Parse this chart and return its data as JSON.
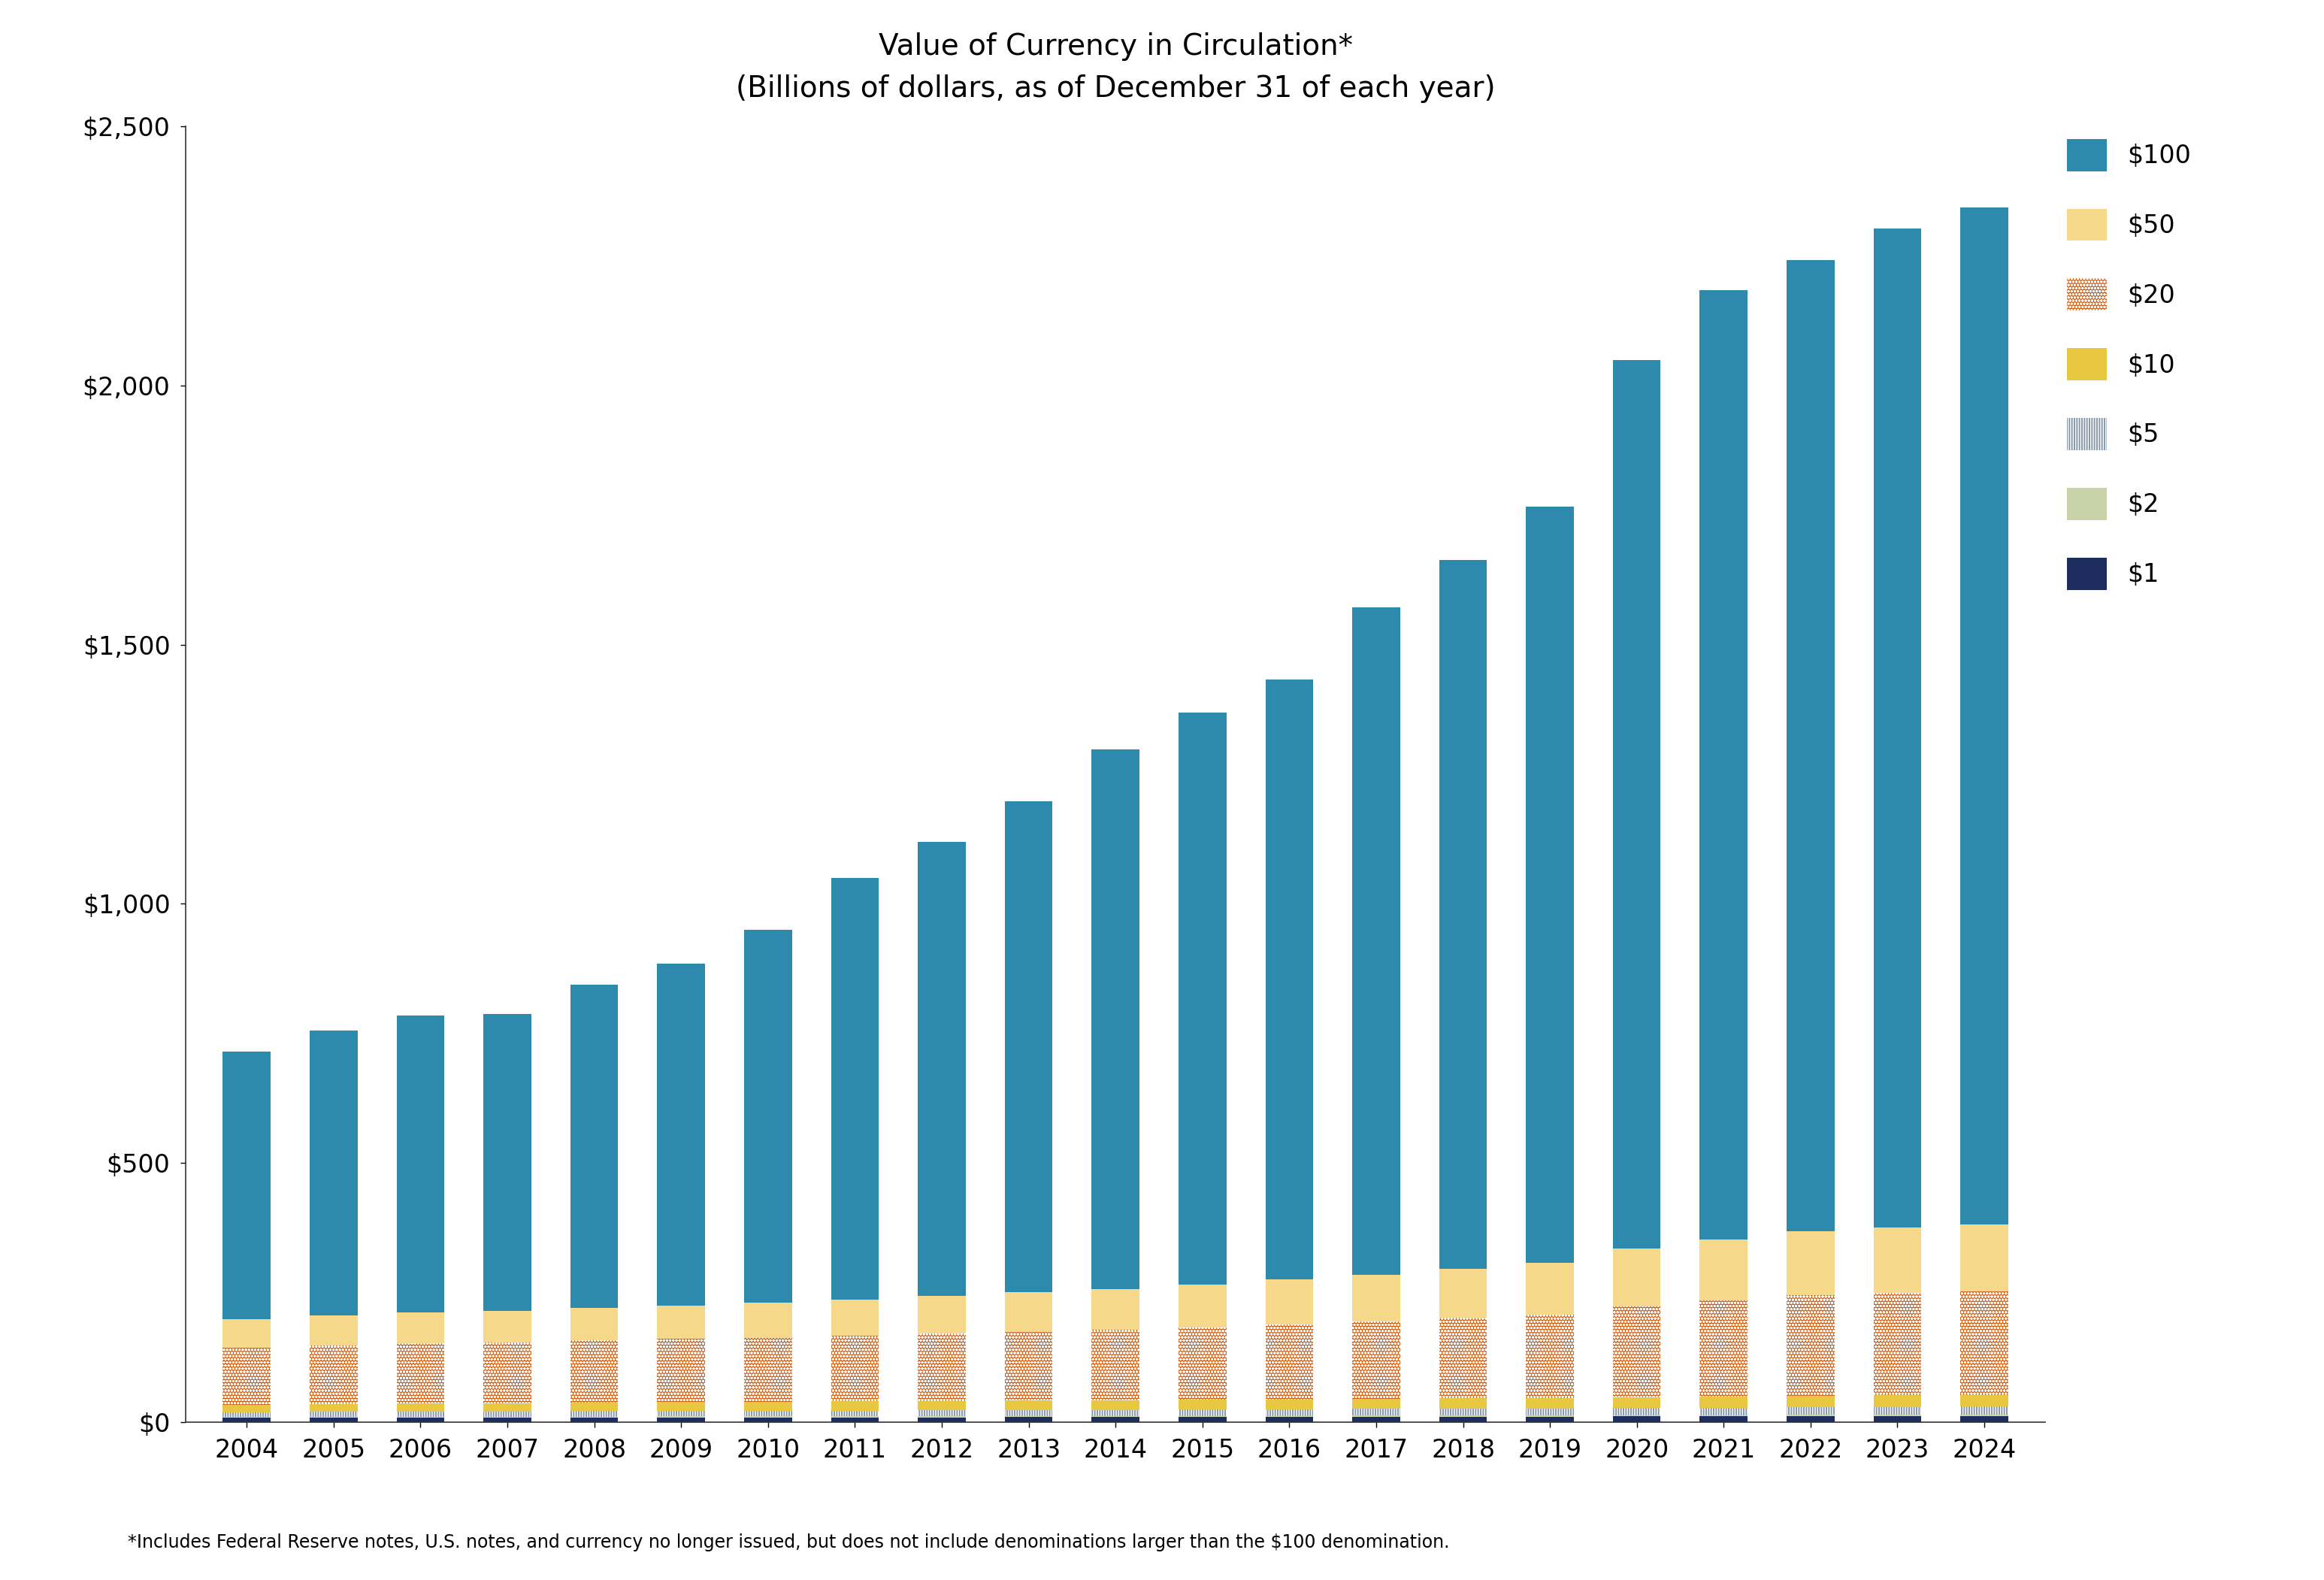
{
  "title_line1": "Value of Currency in Circulation*",
  "title_line2": "(Billions of dollars, as of December 31 of each year)",
  "footnote": "*Includes Federal Reserve notes, U.S. notes, and currency no longer issued, but does not include denominations larger than the $100 denomination.",
  "years": [
    2004,
    2005,
    2006,
    2007,
    2008,
    2009,
    2010,
    2011,
    2012,
    2013,
    2014,
    2015,
    2016,
    2017,
    2018,
    2019,
    2020,
    2021,
    2022,
    2023,
    2024
  ],
  "d1": [
    8.0,
    8.2,
    8.4,
    8.5,
    8.7,
    8.8,
    8.9,
    9.0,
    9.1,
    9.2,
    9.4,
    9.6,
    9.8,
    10.0,
    10.2,
    10.4,
    10.6,
    10.8,
    11.0,
    11.2,
    11.4
  ],
  "d2": [
    1.5,
    1.6,
    1.7,
    1.7,
    1.8,
    1.8,
    1.9,
    1.9,
    2.0,
    2.0,
    2.1,
    2.1,
    2.2,
    2.2,
    2.3,
    2.4,
    2.5,
    2.6,
    2.7,
    2.8,
    2.9
  ],
  "d5": [
    9.0,
    9.5,
    10.0,
    10.2,
    10.5,
    10.8,
    11.0,
    11.2,
    11.5,
    11.8,
    12.0,
    12.3,
    12.6,
    12.9,
    13.2,
    13.5,
    14.0,
    14.5,
    14.8,
    15.0,
    15.2
  ],
  "d10": [
    15.0,
    15.5,
    16.0,
    16.2,
    16.5,
    16.8,
    17.0,
    17.5,
    18.0,
    18.2,
    18.5,
    18.8,
    19.0,
    19.5,
    20.0,
    20.5,
    21.0,
    21.5,
    22.0,
    22.5,
    23.0
  ],
  "d20": [
    110.0,
    113.0,
    116.0,
    117.0,
    120.0,
    122.0,
    124.0,
    127.0,
    130.0,
    133.0,
    136.0,
    140.0,
    145.0,
    150.0,
    155.0,
    160.0,
    175.0,
    185.0,
    195.0,
    198.0,
    200.0
  ],
  "d50": [
    55.0,
    58.0,
    60.0,
    61.0,
    63.0,
    65.0,
    67.0,
    70.0,
    73.0,
    76.0,
    79.0,
    82.0,
    86.0,
    90.0,
    95.0,
    100.0,
    112.0,
    118.0,
    123.0,
    126.0,
    128.0
  ],
  "d100": [
    516.0,
    549.0,
    572.0,
    573.0,
    623.0,
    659.0,
    720.0,
    813.0,
    876.0,
    947.0,
    1041.0,
    1104.0,
    1158.0,
    1288.0,
    1368.0,
    1460.0,
    1714.0,
    1832.0,
    1874.0,
    1927.0,
    1963.0
  ],
  "color_1": "#1c2d5e",
  "color_2": "#c8d4a8",
  "color_5": "#8899aa",
  "color_10": "#e8c840",
  "color_20": "#d4621a",
  "color_50": "#f5d88a",
  "color_100": "#2e8aad",
  "background_color": "#ffffff",
  "ylim": [
    0,
    2500
  ],
  "yticks": [
    0,
    500,
    1000,
    1500,
    2000,
    2500
  ],
  "ytick_labels": [
    "$0",
    "$500",
    "$1,000",
    "$1,500",
    "$2,000",
    "$2,500"
  ],
  "bar_width": 0.55
}
